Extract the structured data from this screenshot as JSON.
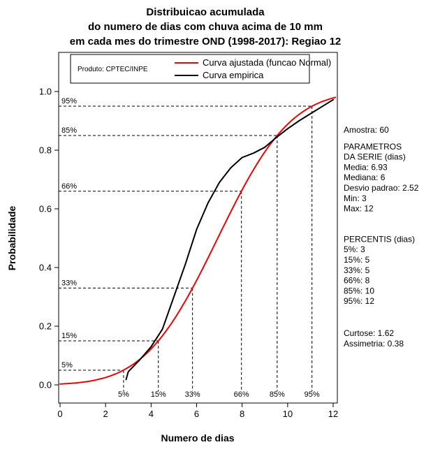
{
  "chart_data": {
    "type": "line",
    "title": [
      "Distribuicao acumulada",
      "do numero de dias com chuva acima de 10 mm",
      "em cada mes do trimestre OND (1998-2017): Regiao 12"
    ],
    "xlabel": "Numero de dias",
    "ylabel": "Probabilidade",
    "xlim": [
      0,
      12.2
    ],
    "ylim": [
      0,
      1
    ],
    "x_ticks": [
      0,
      2,
      4,
      6,
      8,
      10,
      12
    ],
    "y_ticks": [
      "0.0",
      "0.2",
      "0.4",
      "0.6",
      "0.8",
      "1.0"
    ],
    "legend": {
      "position": "top",
      "product_label": "Produto: CPTEC/INPE"
    },
    "series": [
      {
        "name": "Curva ajustada (funcao Normal)",
        "color": "#ee0000",
        "model": "normal_cdf",
        "mean": 6.93,
        "sd": 2.52,
        "x_range": [
          0,
          12.15
        ]
      },
      {
        "name": "Curva empirica",
        "color": "#000000",
        "points": [
          [
            2.9,
            0.018
          ],
          [
            3,
            0.045
          ],
          [
            3.5,
            0.085
          ],
          [
            4,
            0.13
          ],
          [
            4.5,
            0.19
          ],
          [
            5,
            0.3
          ],
          [
            5.5,
            0.41
          ],
          [
            6,
            0.53
          ],
          [
            6.5,
            0.62
          ],
          [
            7,
            0.69
          ],
          [
            7.5,
            0.74
          ],
          [
            8,
            0.775
          ],
          [
            8.5,
            0.79
          ],
          [
            9,
            0.81
          ],
          [
            9.5,
            0.843
          ],
          [
            10,
            0.873
          ],
          [
            10.5,
            0.9
          ],
          [
            11,
            0.924
          ],
          [
            11.5,
            0.948
          ],
          [
            12,
            0.972
          ]
        ]
      }
    ],
    "percentile_lines": [
      {
        "label": "5%",
        "p": 0.05,
        "x": 2.79
      },
      {
        "label": "15%",
        "p": 0.15,
        "x": 4.32
      },
      {
        "label": "33%",
        "p": 0.33,
        "x": 5.82
      },
      {
        "label": "66%",
        "p": 0.66,
        "x": 7.97
      },
      {
        "label": "85%",
        "p": 0.85,
        "x": 9.54
      },
      {
        "label": "95%",
        "p": 0.95,
        "x": 11.07
      }
    ],
    "grid": false
  },
  "stats_panel": {
    "blocks": [
      {
        "lines": [
          "Amostra: 60"
        ]
      },
      {
        "lines": [
          "PARAMETROS",
          "DA SERIE (dias)",
          "Media: 6.93",
          "Mediana: 6",
          "Desvio padrao: 2.52",
          "Min: 3",
          "Max: 12"
        ]
      },
      {
        "lines": [
          "PERCENTIS (dias)",
          "5%: 3",
          "15%: 5",
          "33%: 5",
          "66%: 8",
          "85%: 10",
          "95%: 12"
        ]
      },
      {
        "lines": [
          "Curtose: 1.62",
          "Assimetria: 0.38"
        ]
      }
    ]
  }
}
